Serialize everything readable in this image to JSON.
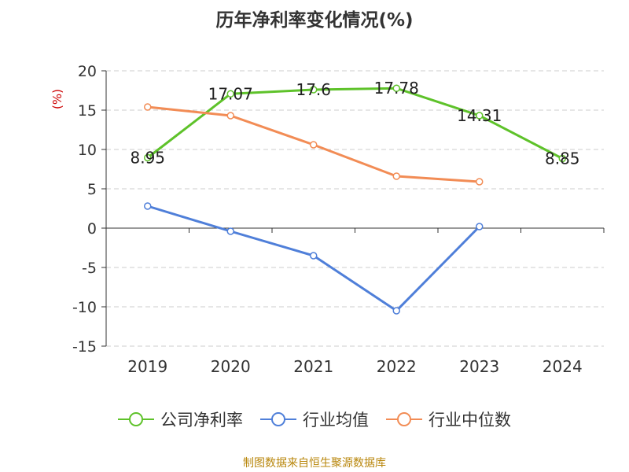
{
  "chart_data": {
    "type": "line",
    "title": "历年净利率变化情况(%)",
    "ylabel": "(%)",
    "xlabel": "",
    "categories": [
      "2019",
      "2020",
      "2021",
      "2022",
      "2023",
      "2024"
    ],
    "ylim": [
      -15,
      20
    ],
    "yticks": [
      20,
      15,
      10,
      5,
      0,
      -5,
      -10,
      -15
    ],
    "grid": true,
    "legend_position": "bottom",
    "series": [
      {
        "name": "公司净利率",
        "color": "#5ec22a",
        "values": [
          8.95,
          17.07,
          17.6,
          17.78,
          14.31,
          8.85
        ],
        "labels": [
          "8.95",
          "17.07",
          "17.6",
          "17.78",
          "14.31",
          "8.85"
        ]
      },
      {
        "name": "行业均值",
        "color": "#4f7fd9",
        "values": [
          2.8,
          -0.4,
          -3.5,
          -10.5,
          0.2,
          null
        ]
      },
      {
        "name": "行业中位数",
        "color": "#f28c55",
        "values": [
          15.4,
          14.3,
          10.6,
          6.6,
          5.9,
          null
        ]
      }
    ]
  },
  "footer": {
    "source": "制图数据来自恒生聚源数据库"
  }
}
